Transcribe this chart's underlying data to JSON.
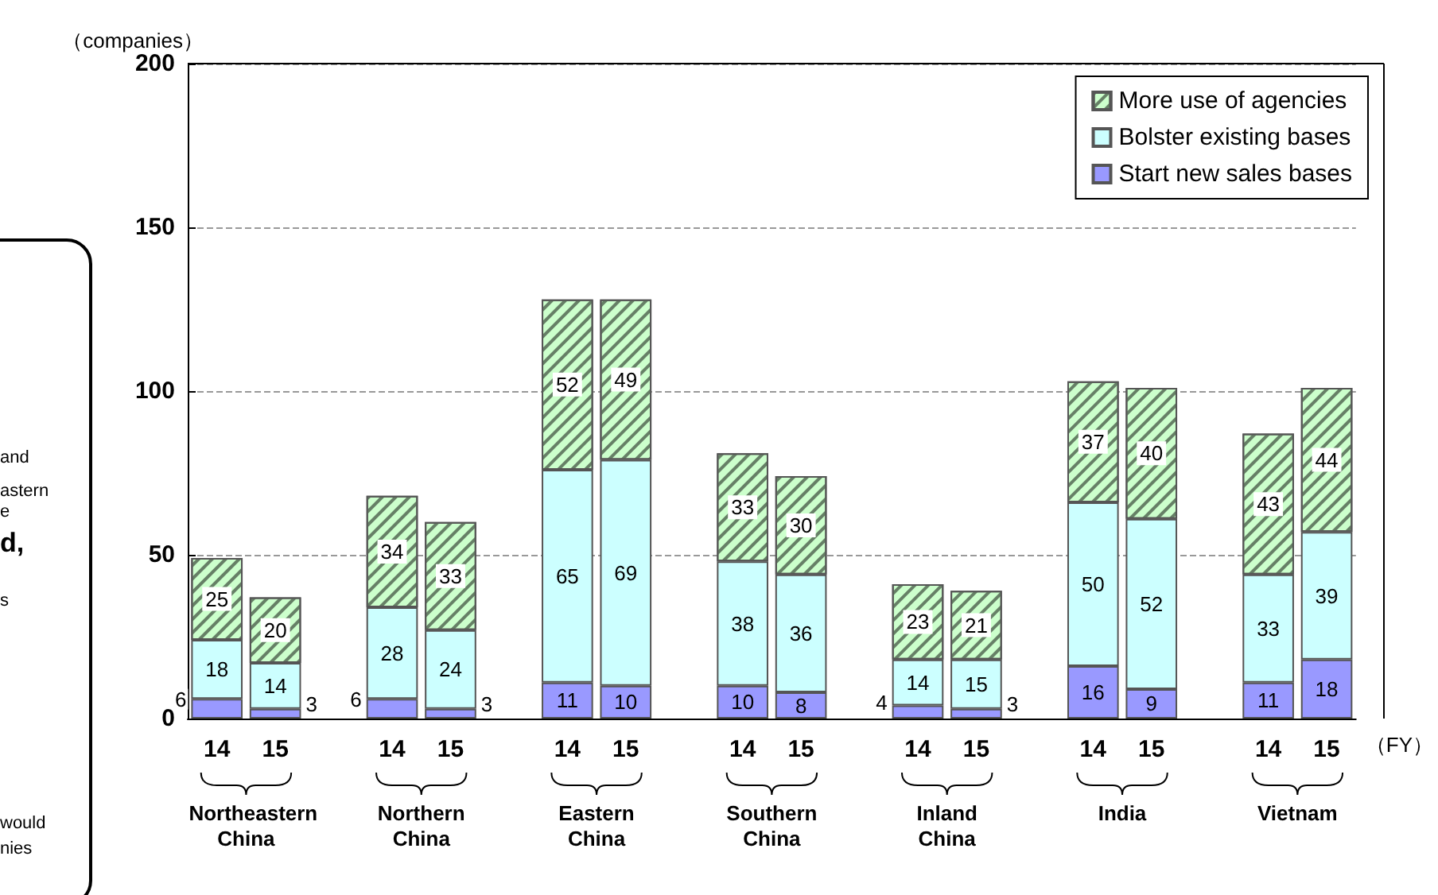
{
  "chart_data": {
    "type": "bar",
    "stacked": true,
    "ylabel": "（companies）",
    "xlabel": "（FY）",
    "categories": [
      "14",
      "15",
      null,
      "14",
      "15",
      null,
      "14",
      "15",
      null,
      "14",
      "15",
      null,
      "14",
      "15",
      null,
      "14",
      "15",
      null,
      "14",
      "15"
    ],
    "series": [
      {
        "name": "Start new sales bases",
        "color": "#9999ff",
        "values": [
          6,
          3,
          null,
          6,
          3,
          null,
          11,
          10,
          null,
          10,
          8,
          null,
          4,
          3,
          null,
          16,
          9,
          null,
          11,
          18
        ]
      },
      {
        "name": "Bolster existing bases",
        "color": "#ccffff",
        "values": [
          18,
          14,
          null,
          28,
          24,
          null,
          65,
          69,
          null,
          38,
          36,
          null,
          14,
          15,
          null,
          50,
          52,
          null,
          33,
          39
        ]
      },
      {
        "name": "More use of agencies",
        "color": "#ccffcc",
        "values": [
          25,
          20,
          null,
          34,
          33,
          null,
          52,
          49,
          null,
          33,
          30,
          null,
          23,
          21,
          null,
          37,
          40,
          null,
          43,
          44
        ]
      }
    ],
    "ylim": [
      0,
      200
    ],
    "yticks": [
      0,
      50,
      100,
      150,
      200
    ],
    "grid": "y",
    "legend": "top right",
    "data_labels": true,
    "annotations": [
      "Northeastern China",
      "Northern China",
      "Eastern China",
      "Southern China",
      "Inland China",
      "India",
      "Vietnam",
      "and",
      "astern",
      "e",
      "d,",
      "s",
      "would",
      "nies"
    ]
  }
}
